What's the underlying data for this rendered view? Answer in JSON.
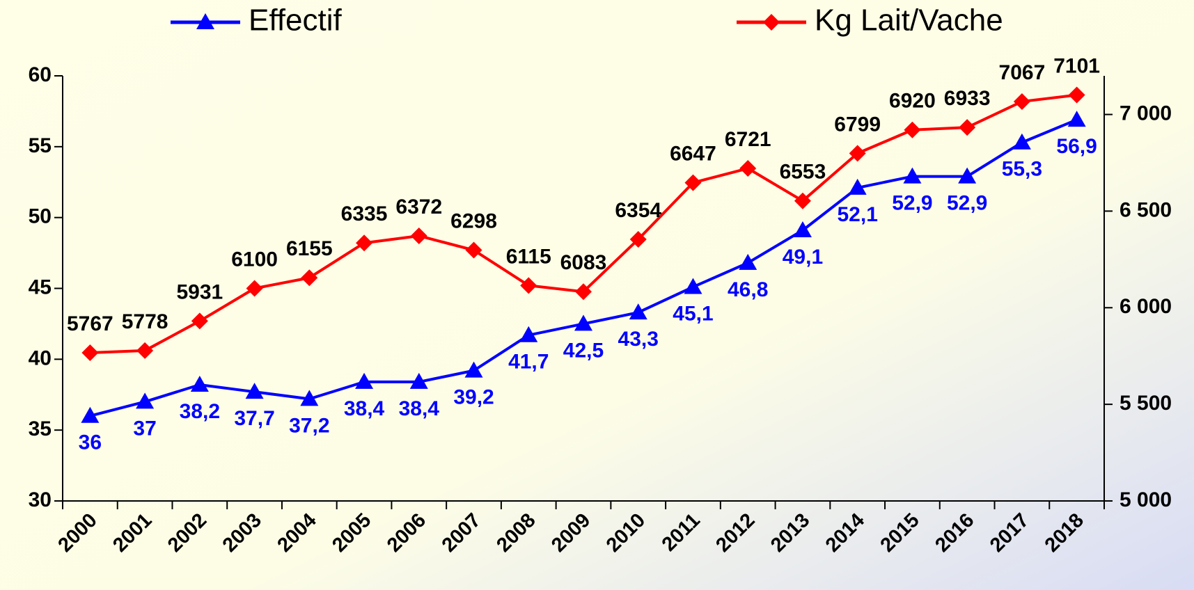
{
  "chart_data": {
    "type": "line",
    "categories": [
      "2000",
      "2001",
      "2002",
      "2003",
      "2004",
      "2005",
      "2006",
      "2007",
      "2008",
      "2009",
      "2010",
      "2011",
      "2012",
      "2013",
      "2014",
      "2015",
      "2016",
      "2017",
      "2018"
    ],
    "series": [
      {
        "name": "Effectif",
        "color": "#0000ff",
        "marker": "triangle",
        "values": [
          36,
          37,
          38.2,
          37.7,
          37.2,
          38.4,
          38.4,
          39.2,
          41.7,
          42.5,
          43.3,
          45.1,
          46.8,
          49.1,
          52.1,
          52.9,
          52.9,
          55.3,
          56.9
        ],
        "value_labels": [
          "36",
          "37",
          "38,2",
          "37,7",
          "37,2",
          "38,4",
          "38,4",
          "39,2",
          "41,7",
          "42,5",
          "43,3",
          "45,1",
          "46,8",
          "49,1",
          "52,1",
          "52,9",
          "52,9",
          "55,3",
          "56,9"
        ]
      },
      {
        "name": "Kg Lait/Vache",
        "color": "#ff0000",
        "marker": "diamond",
        "axis": "y2",
        "values": [
          5767,
          5778,
          5931,
          6100,
          6155,
          6335,
          6372,
          6298,
          6115,
          6083,
          6354,
          6647,
          6721,
          6553,
          6799,
          6920,
          6933,
          7067,
          7101
        ]
      }
    ],
    "ylim": [
      30,
      60
    ],
    "yticks": [
      30,
      35,
      40,
      45,
      50,
      55,
      60
    ],
    "y2lim": [
      5000,
      7200
    ],
    "y2ticks": [
      {
        "value": 5000,
        "label": "5 000"
      },
      {
        "value": 5500,
        "label": "5 500"
      },
      {
        "value": 6000,
        "label": "6 000"
      },
      {
        "value": 6500,
        "label": "6 500"
      },
      {
        "value": 7000,
        "label": "7 000"
      }
    ],
    "grid": false,
    "legend": "top"
  }
}
